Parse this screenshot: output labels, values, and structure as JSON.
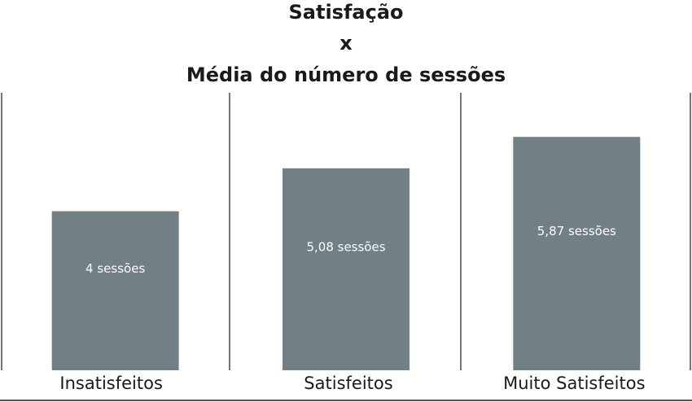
{
  "chart_data": {
    "type": "bar",
    "title": [
      "Satisfação",
      "x",
      "Média do número de sessões"
    ],
    "categories": [
      "Insatisfeitos",
      "Satisfeitos",
      "Muito Satisfeitos"
    ],
    "values": [
      4,
      5.08,
      5.87
    ],
    "data_labels": [
      "4 sessões",
      "5,08 sessões",
      "5,87 sessões"
    ],
    "ylim": [
      0,
      7
    ],
    "bar_color": "#727f85",
    "grid": false,
    "category_separators": true
  }
}
